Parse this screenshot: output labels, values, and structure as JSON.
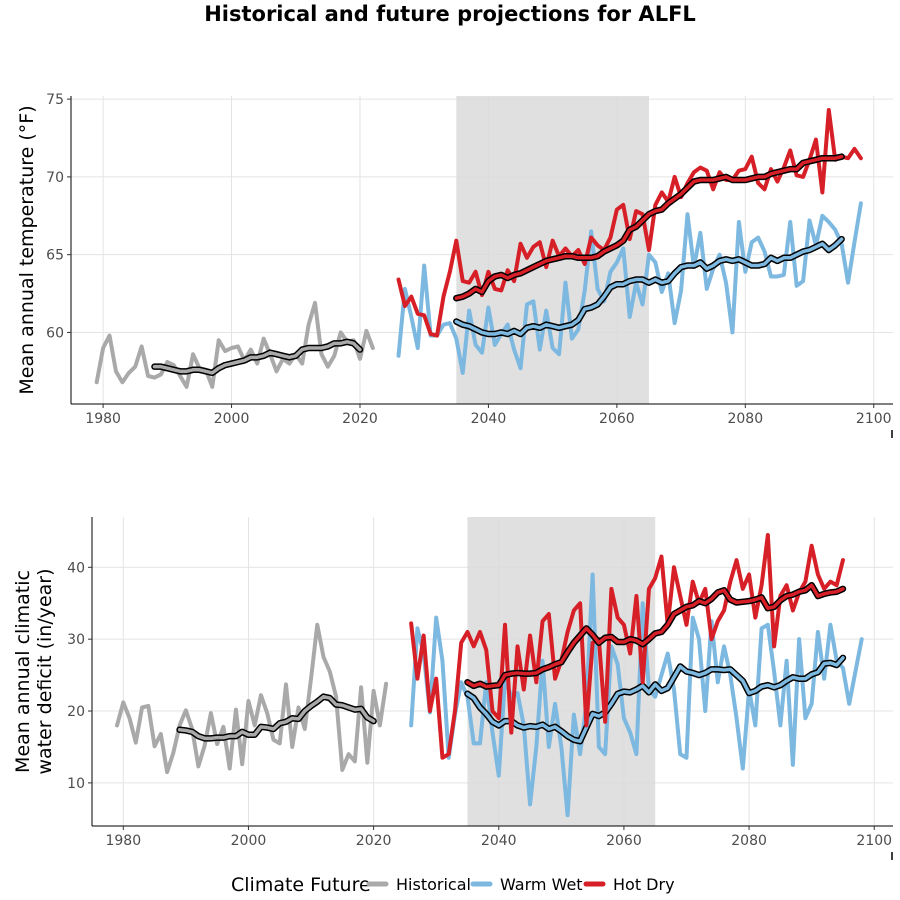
{
  "title": "Historical and future projections for ALFL",
  "legend": {
    "title": "Climate Future",
    "items": [
      {
        "label": "Historical",
        "color": "#a9a9a9"
      },
      {
        "label": "Warm Wet",
        "color": "#7cb8e0"
      },
      {
        "label": "Hot Dry",
        "color": "#d61f26"
      }
    ]
  },
  "colors": {
    "historical": "#a9a9a9",
    "warm_wet": "#7cb8e0",
    "hot_dry": "#d61f26",
    "smooth": "#000000",
    "shade": "#dadada"
  },
  "chart_data": [
    {
      "type": "line",
      "ylabel": "Mean annual temperature (°F)",
      "xlabel": "",
      "xlim": [
        1975,
        2103
      ],
      "ylim": [
        55.4,
        75.2
      ],
      "xticks": [
        "1980",
        "2000",
        "2020",
        "2040",
        "2060",
        "2080",
        "2100"
      ],
      "yticks": [
        "60",
        "65",
        "70",
        "75"
      ],
      "grid": true,
      "shaded_range": [
        2035,
        2065
      ],
      "series": [
        {
          "name": "Historical",
          "color_key": "historical",
          "x_start": 1979,
          "values": [
            56.8,
            59.0,
            59.8,
            57.5,
            56.8,
            57.4,
            57.8,
            59.1,
            57.2,
            57.1,
            57.3,
            58.1,
            57.9,
            57.2,
            56.5,
            58.6,
            57.7,
            57.6,
            56.5,
            59.5,
            58.8,
            59.0,
            59.1,
            58.2,
            58.9,
            58.0,
            59.6,
            58.6,
            57.5,
            58.3,
            58.0,
            58.6,
            58.0,
            60.5,
            61.9,
            58.6,
            57.8,
            58.5,
            60.0,
            59.4,
            59.5,
            58.3,
            60.1,
            59.0
          ]
        },
        {
          "name": "Historical smoothed",
          "color_key": "historical",
          "smooth": true,
          "x_start": 1988,
          "values": [
            57.8,
            57.8,
            57.7,
            57.6,
            57.5,
            57.5,
            57.6,
            57.6,
            57.5,
            57.4,
            57.7,
            57.9,
            58.0,
            58.1,
            58.2,
            58.4,
            58.4,
            58.5,
            58.7,
            58.6,
            58.5,
            58.4,
            58.5,
            58.9,
            59.0,
            59.0,
            59.0,
            59.1,
            59.3,
            59.3,
            59.4,
            59.3,
            58.9
          ]
        },
        {
          "name": "Warm Wet",
          "color_key": "warm_wet",
          "x_start": 2026,
          "values": [
            58.5,
            62.8,
            61.0,
            59.0,
            64.3,
            59.8,
            59.8,
            60.5,
            60.6,
            59.6,
            57.4,
            61.4,
            59.2,
            58.7,
            61.6,
            59.2,
            59.9,
            60.5,
            58.9,
            57.7,
            61.8,
            62.0,
            58.9,
            61.4,
            59.0,
            58.6,
            63.2,
            59.6,
            60.2,
            62.7,
            66.5,
            62.8,
            62.0,
            63.9,
            64.5,
            65.4,
            61.0,
            63.2,
            61.8,
            65.0,
            64.5,
            62.6,
            63.8,
            60.6,
            62.7,
            67.6,
            64.2,
            66.4,
            62.8,
            64.1,
            65.0,
            63.2,
            60.0,
            67.1,
            63.9,
            65.8,
            66.1,
            65.2,
            63.6,
            63.6,
            63.7,
            67.1,
            63.0,
            63.3,
            67.2,
            65.6,
            67.5,
            67.1,
            66.6,
            65.7,
            63.2,
            65.8,
            68.3
          ]
        },
        {
          "name": "Warm Wet smoothed",
          "color_key": "warm_wet",
          "smooth": true,
          "x_start": 2035,
          "values": [
            60.7,
            60.5,
            60.4,
            60.2,
            60.0,
            59.9,
            59.9,
            60.0,
            59.9,
            60.1,
            59.9,
            60.3,
            60.4,
            60.3,
            60.5,
            60.4,
            60.3,
            60.4,
            60.5,
            60.8,
            61.5,
            61.6,
            61.8,
            62.3,
            62.9,
            63.1,
            63.1,
            63.3,
            63.4,
            63.4,
            63.2,
            63.4,
            63.2,
            63.3,
            63.8,
            64.2,
            64.3,
            64.3,
            64.5,
            64.1,
            64.3,
            64.6,
            64.7,
            64.6,
            64.7,
            64.5,
            64.3,
            64.3,
            64.4,
            64.8,
            64.6,
            64.8,
            64.8,
            65.0,
            65.2,
            65.3,
            65.5,
            65.7,
            65.3,
            65.6,
            66.0
          ]
        },
        {
          "name": "Hot Dry",
          "color_key": "hot_dry",
          "x_start": 2026,
          "values": [
            63.4,
            61.7,
            62.3,
            61.2,
            61.1,
            59.9,
            59.8,
            62.3,
            63.9,
            65.9,
            63.3,
            63.2,
            63.9,
            62.4,
            63.9,
            62.8,
            62.7,
            64.0,
            63.3,
            65.7,
            64.8,
            65.5,
            65.8,
            64.2,
            65.9,
            64.9,
            65.4,
            64.9,
            65.3,
            64.4,
            66.1,
            65.6,
            65.3,
            66.1,
            67.9,
            68.2,
            66.0,
            67.8,
            67.6,
            65.3,
            68.2,
            69.0,
            68.4,
            70.0,
            68.7,
            69.6,
            70.3,
            70.6,
            70.4,
            69.2,
            70.3,
            69.8,
            69.8,
            70.4,
            70.5,
            71.3,
            69.6,
            69.2,
            70.5,
            69.7,
            70.6,
            71.7,
            70.1,
            70.0,
            71.1,
            72.4,
            69.0,
            74.3,
            71.1,
            71.3,
            71.2,
            71.8,
            71.2
          ]
        },
        {
          "name": "Hot Dry smoothed",
          "color_key": "hot_dry",
          "smooth": true,
          "x_start": 2035,
          "values": [
            62.2,
            62.3,
            62.5,
            62.8,
            62.6,
            63.3,
            63.6,
            63.7,
            63.5,
            63.7,
            63.8,
            64.0,
            64.2,
            64.4,
            64.6,
            64.7,
            64.8,
            64.9,
            64.9,
            64.8,
            64.8,
            64.8,
            64.9,
            65.2,
            65.4,
            65.6,
            65.9,
            66.6,
            66.8,
            67.2,
            67.6,
            67.8,
            67.9,
            68.3,
            68.6,
            68.9,
            69.3,
            69.7,
            69.8,
            69.8,
            69.8,
            69.9,
            70.0,
            69.8,
            69.8,
            69.8,
            69.9,
            70.0,
            70.0,
            70.2,
            70.3,
            70.4,
            70.5,
            70.5,
            70.9,
            71.0,
            71.1,
            71.2,
            71.2,
            71.2,
            71.3
          ]
        }
      ]
    },
    {
      "type": "line",
      "ylabel": "Mean annual climatic\nwater deficit (in/year)",
      "xlabel": "",
      "xlim": [
        1975,
        2103
      ],
      "ylim": [
        4,
        47
      ],
      "xticks": [
        "1980",
        "2000",
        "2020",
        "2040",
        "2060",
        "2080",
        "2100"
      ],
      "yticks": [
        "10",
        "20",
        "30",
        "40"
      ],
      "grid": true,
      "shaded_range": [
        2035,
        2065
      ],
      "series": [
        {
          "name": "Historical",
          "color_key": "historical",
          "x_start": 1979,
          "values": [
            18.0,
            21.2,
            19.0,
            15.6,
            20.5,
            20.7,
            15.1,
            16.8,
            11.5,
            14.2,
            18.0,
            20.1,
            17.5,
            12.3,
            15.2,
            19.7,
            15.4,
            17.8,
            12.0,
            20.2,
            12.6,
            21.4,
            18.0,
            22.2,
            19.7,
            16.0,
            15.5,
            23.7,
            15.0,
            20.5,
            17.5,
            24.5,
            32.0,
            27.5,
            25.5,
            22.0,
            11.8,
            14.0,
            13.0,
            23.3,
            12.8,
            22.8,
            18.0,
            23.8
          ]
        },
        {
          "name": "Historical smoothed",
          "color_key": "historical",
          "smooth": true,
          "x_start": 1989,
          "values": [
            17.4,
            17.3,
            17.1,
            16.5,
            16.2,
            16.2,
            16.3,
            16.3,
            16.5,
            16.5,
            17.1,
            16.7,
            16.7,
            17.8,
            17.7,
            17.5,
            18.3,
            18.5,
            19.0,
            18.9,
            20.0,
            20.7,
            21.3,
            22.0,
            21.8,
            20.9,
            20.8,
            20.5,
            20.2,
            20.3,
            19.1,
            18.6
          ]
        },
        {
          "name": "Warm Wet",
          "color_key": "warm_wet",
          "x_start": 2026,
          "values": [
            18.0,
            31.5,
            28.0,
            19.8,
            33.0,
            27.0,
            13.5,
            19.5,
            24.0,
            22.0,
            15.5,
            15.5,
            24.0,
            17.0,
            11.0,
            24.5,
            22.0,
            22.5,
            18.0,
            7.0,
            15.0,
            27.0,
            15.0,
            21.0,
            15.0,
            5.5,
            19.5,
            14.0,
            21.0,
            39.0,
            15.0,
            14.0,
            29.0,
            26.5,
            19.0,
            17.0,
            14.0,
            35.0,
            23.0,
            22.0,
            25.0,
            28.0,
            23.0,
            14.0,
            13.5,
            33.0,
            30.0,
            20.0,
            32.5,
            24.0,
            29.0,
            25.0,
            19.0,
            12.0,
            23.0,
            18.0,
            31.5,
            32.0,
            25.5,
            18.0,
            27.0,
            12.5,
            30.0,
            19.0,
            21.0,
            31.0,
            24.5,
            32.0,
            27.0,
            26.0,
            21.0,
            25.5,
            30.0
          ]
        },
        {
          "name": "Warm Wet smoothed",
          "color_key": "warm_wet",
          "smooth": true,
          "x_start": 2035,
          "values": [
            22.4,
            21.8,
            20.5,
            19.6,
            18.5,
            18.0,
            18.6,
            18.6,
            18.0,
            17.7,
            17.9,
            17.8,
            18.1,
            17.5,
            17.8,
            17.2,
            16.5,
            16.0,
            15.8,
            17.7,
            19.6,
            19.3,
            19.8,
            21.0,
            22.4,
            22.7,
            22.6,
            23.0,
            23.5,
            22.6,
            23.7,
            22.8,
            23.2,
            24.7,
            26.2,
            25.5,
            25.3,
            25.0,
            25.3,
            25.8,
            25.8,
            25.7,
            25.8,
            25.0,
            24.2,
            22.5,
            22.8,
            23.4,
            23.6,
            23.3,
            23.6,
            24.2,
            24.7,
            24.5,
            24.5,
            25.1,
            25.4,
            26.6,
            26.7,
            26.4,
            27.4
          ]
        },
        {
          "name": "Hot Dry",
          "color_key": "hot_dry",
          "x_start": 2026,
          "values": [
            32.2,
            24.5,
            30.5,
            20.0,
            24.5,
            13.5,
            14.0,
            20.0,
            29.5,
            31.0,
            29.0,
            31.0,
            28.5,
            20.0,
            19.0,
            32.0,
            17.0,
            29.0,
            23.0,
            30.5,
            24.0,
            32.5,
            33.5,
            24.5,
            27.0,
            31.0,
            34.0,
            35.0,
            18.0,
            29.5,
            30.0,
            18.5,
            37.0,
            33.0,
            32.0,
            28.0,
            36.0,
            24.0,
            37.0,
            38.5,
            41.5,
            32.0,
            40.0,
            36.0,
            32.0,
            38.0,
            35.0,
            37.0,
            30.0,
            32.5,
            34.0,
            38.0,
            41.0,
            37.0,
            39.0,
            33.0,
            37.5,
            44.5,
            29.0,
            36.0,
            37.5,
            34.0,
            36.5,
            38.0,
            43.0,
            39.0,
            37.0,
            38.0,
            37.5,
            41.0
          ]
        },
        {
          "name": "Hot Dry smoothed",
          "color_key": "hot_dry",
          "smooth": true,
          "x_start": 2035,
          "values": [
            24.0,
            23.5,
            23.8,
            23.4,
            23.5,
            23.6,
            25.0,
            25.2,
            25.3,
            25.2,
            25.2,
            25.3,
            25.8,
            26.1,
            26.5,
            26.8,
            28.2,
            29.5,
            30.5,
            31.5,
            30.6,
            29.5,
            30.2,
            30.3,
            29.6,
            29.6,
            30.0,
            29.8,
            29.3,
            30.0,
            30.8,
            31.0,
            32.0,
            33.5,
            34.0,
            34.5,
            34.7,
            35.3,
            35.0,
            35.6,
            36.5,
            36.8,
            35.5,
            35.1,
            35.2,
            35.3,
            35.5,
            35.8,
            34.3,
            34.5,
            35.4,
            36.0,
            36.2,
            36.6,
            36.8,
            37.5,
            36.0,
            36.3,
            36.5,
            36.6,
            37.0
          ]
        }
      ]
    }
  ]
}
